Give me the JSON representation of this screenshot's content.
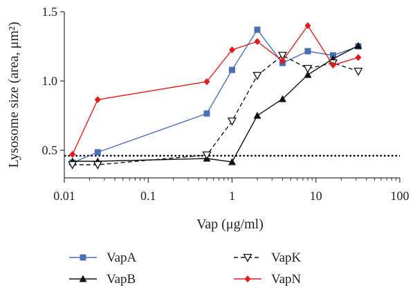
{
  "chart_data": {
    "type": "line",
    "x_scale": "log",
    "xlabel": "Vap (μg/ml)",
    "ylabel": "Lysosome size (area, μm²)",
    "xlim": [
      0.01,
      100
    ],
    "ylim": [
      0.3,
      1.5
    ],
    "x_ticks": [
      0.01,
      0.1,
      1,
      10,
      100
    ],
    "x_tick_labels": [
      "0.01",
      "0.1",
      "1",
      "10",
      "100"
    ],
    "y_ticks": [
      0.5,
      1.0,
      1.5
    ],
    "y_tick_labels": [
      "0.5",
      "1.0",
      "1.5"
    ],
    "grid": false,
    "legend_position": "bottom",
    "reference_line": {
      "y": 0.46,
      "style": "dotted",
      "color": "#000000"
    },
    "series": [
      {
        "name": "VapA",
        "color": "#4a6fb5",
        "marker": "square",
        "line": "solid",
        "x": [
          0.0125,
          0.025,
          0.5,
          1,
          2,
          4,
          8,
          16,
          32
        ],
        "y": [
          0.41,
          0.485,
          0.765,
          1.08,
          1.37,
          1.13,
          1.215,
          1.185,
          1.25
        ]
      },
      {
        "name": "VapB",
        "color": "#111111",
        "marker": "triangle",
        "line": "solid",
        "x": [
          0.0125,
          0.025,
          0.5,
          1,
          2,
          4,
          8,
          16,
          32
        ],
        "y": [
          0.42,
          0.42,
          0.44,
          0.415,
          0.75,
          0.87,
          1.045,
          1.16,
          1.255
        ]
      },
      {
        "name": "VapK",
        "color": "#111111",
        "marker": "triangle-down-open",
        "line": "dashed",
        "x": [
          0.0125,
          0.025,
          0.5,
          1,
          2,
          4,
          8,
          16,
          32
        ],
        "y": [
          0.395,
          0.395,
          0.465,
          0.71,
          1.04,
          1.185,
          1.09,
          1.13,
          1.07
        ]
      },
      {
        "name": "VapN",
        "color": "#e31a1c",
        "marker": "diamond",
        "line": "solid",
        "x": [
          0.0125,
          0.025,
          0.5,
          1,
          2,
          4,
          8,
          16,
          32
        ],
        "y": [
          0.47,
          0.865,
          0.995,
          1.225,
          1.285,
          1.145,
          1.4,
          1.115,
          1.17
        ]
      }
    ]
  }
}
